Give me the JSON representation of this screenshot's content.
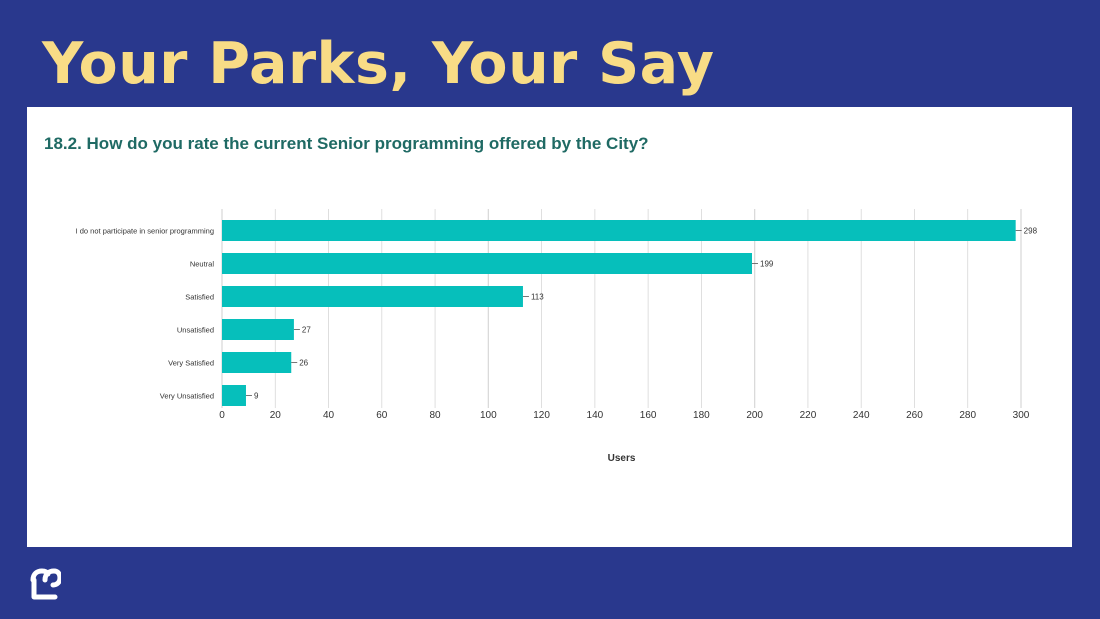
{
  "slide": {
    "title": "Your Parks, Your Say",
    "question": "18.2. How do you rate the current Senior programming offered by the City?"
  },
  "colors": {
    "background": "#29388d",
    "title": "#f8dc86",
    "card": "#ffffff",
    "question_text": "#1f6a64",
    "bar": "#06bfbb",
    "grid": "#d7d7d7",
    "axis_text": "#333333",
    "logo": "#ffffff"
  },
  "logo_icon": "city-logo-icon",
  "chart_data": {
    "type": "bar",
    "orientation": "horizontal",
    "categories": [
      "I do not participate in senior programming",
      "Neutral",
      "Satisfied",
      "Unsatisfied",
      "Very Satisfied",
      "Very Unsatisfied"
    ],
    "values": [
      298,
      199,
      113,
      27,
      26,
      9
    ],
    "xlabel": "Users",
    "ylabel": "",
    "xlim": [
      0,
      300
    ],
    "x_ticks": [
      0,
      20,
      40,
      60,
      80,
      100,
      120,
      140,
      160,
      180,
      200,
      220,
      240,
      260,
      280,
      300
    ],
    "grid": true,
    "data_labels": true
  }
}
